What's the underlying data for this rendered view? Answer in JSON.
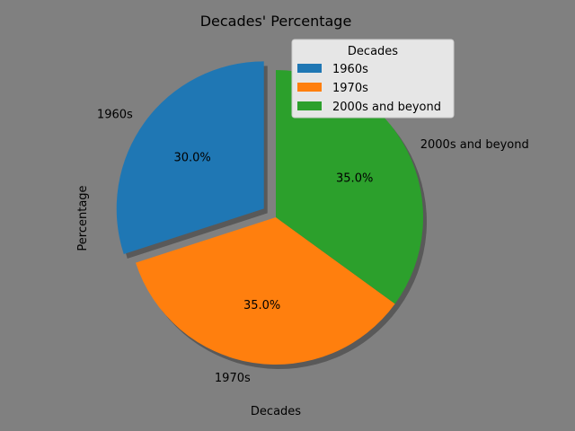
{
  "chart_data": {
    "type": "pie",
    "title": "Decades' Percentage",
    "xlabel": "Decades",
    "ylabel": "Percentage",
    "categories": [
      "1960s",
      "1970s",
      "2000s and beyond"
    ],
    "values": [
      30.0,
      35.0,
      35.0
    ],
    "value_labels": [
      "30.0%",
      "35.0%",
      "35.0%"
    ],
    "colors": [
      "#1f77b4",
      "#ff7f0e",
      "#2ca02c"
    ],
    "explode": [
      0.1,
      0,
      0
    ],
    "start_angle_deg": 90,
    "direction": "counterclockwise",
    "shadow": true,
    "legend": {
      "title": "Decades",
      "placement": "upper-right",
      "entries": [
        "1960s",
        "1970s",
        "2000s and beyond"
      ]
    },
    "background_color": "#808080"
  }
}
